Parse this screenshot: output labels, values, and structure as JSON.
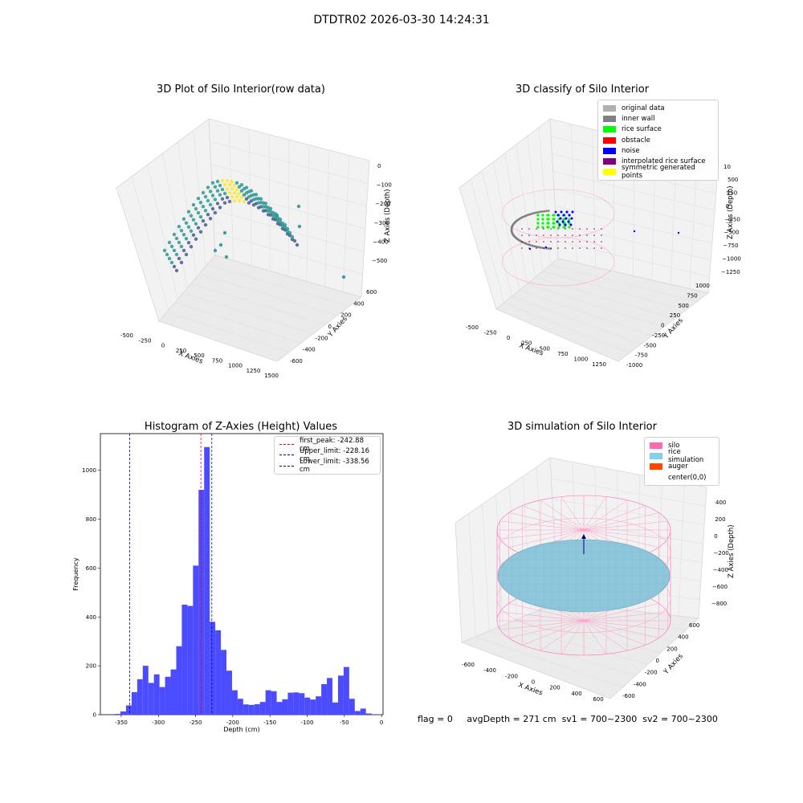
{
  "figure": {
    "title": "DTDTR02 2026-03-30 14:24:31",
    "status": {
      "flag": "flag = 0",
      "avg_depth": "avgDepth = 271 cm",
      "sv1": "sv1 = 700~2300",
      "sv2": "sv2 = 700~2300"
    }
  },
  "chart_data": [
    {
      "type": "scatter",
      "panel": "raw-3d",
      "title": "3D Plot of Silo Interior(row data)",
      "xlabel": "X Axies",
      "ylabel": "Y Axies",
      "zlabel": "Z Axies (Depth)",
      "x_ticks": [
        "-500",
        "-250",
        "0",
        "250",
        "500",
        "750",
        "1000",
        "1250",
        "1500"
      ],
      "y_ticks": [
        "-600",
        "-400",
        "-200",
        "0",
        "200",
        "400",
        "600"
      ],
      "z_ticks": [
        "0",
        "−100",
        "−200",
        "−300",
        "−400",
        "−500"
      ],
      "colormap": "viridis",
      "point_color_low": "#3b528b",
      "point_color_mid": "#21918c",
      "point_color_high": "#fde725"
    },
    {
      "type": "scatter",
      "panel": "classify-3d",
      "title": "3D classify of Silo Interior",
      "xlabel": "X Axies",
      "ylabel": "Y Axies",
      "zlabel": "Z Axies (Depth)",
      "x_ticks": [
        "-500",
        "-250",
        "0",
        "250",
        "500",
        "750",
        "1000",
        "1250"
      ],
      "y_ticks": [
        "-1000",
        "-750",
        "-500",
        "-250",
        "0",
        "250",
        "500",
        "750",
        "1000"
      ],
      "z_ticks": [
        "500",
        "250",
        "0",
        "−250",
        "−500",
        "−750",
        "−1000",
        "−1250"
      ],
      "z_tick_partial": "10",
      "legend_position": "top-right",
      "legend": [
        {
          "label": "original data",
          "color": "#b0b0b0"
        },
        {
          "label": "inner wall",
          "color": "#808080"
        },
        {
          "label": "rice surface",
          "color": "#00ff00"
        },
        {
          "label": "obstacle",
          "color": "#ff0000"
        },
        {
          "label": "noise",
          "color": "#0000ff"
        },
        {
          "label": "interpolated rice surface",
          "color": "#800080"
        },
        {
          "label": "symmetric generated points",
          "color": "#ffff00"
        }
      ]
    },
    {
      "type": "bar",
      "panel": "histogram",
      "title": "Histogram of Z-Axies (Height) Values",
      "xlabel": "Depth (cm)",
      "ylabel": "Frequency",
      "xlim": [
        -378,
        2
      ],
      "ylim": [
        0,
        1150
      ],
      "bar_color": "#4b4bff",
      "bin_width": 7.5,
      "bins_start": [
        -366,
        -358.5,
        -351,
        -343.5,
        -336,
        -328.5,
        -321,
        -313.5,
        -306,
        -298.5,
        -291,
        -283.5,
        -276,
        -268.5,
        -261,
        -253.5,
        -246,
        -238.5,
        -231,
        -223.5,
        -216,
        -208.5,
        -201,
        -193.5,
        -186,
        -178.5,
        -171,
        -163.5,
        -156,
        -148.5,
        -141,
        -133.5,
        -126,
        -118.5,
        -111,
        -103.5,
        -96,
        -88.5,
        -81,
        -73.5,
        -66,
        -58.5,
        -51,
        -43.5,
        -36,
        -28.5,
        -21,
        -13.5,
        -6
      ],
      "counts": [
        2,
        3,
        13,
        38,
        92,
        145,
        200,
        130,
        165,
        113,
        155,
        185,
        280,
        450,
        445,
        610,
        920,
        1095,
        380,
        345,
        265,
        180,
        100,
        65,
        42,
        40,
        43,
        52,
        100,
        96,
        52,
        63,
        90,
        91,
        88,
        70,
        62,
        75,
        125,
        150,
        50,
        160,
        195,
        65,
        15,
        25,
        5,
        2,
        1
      ],
      "x_ticks": [
        -350,
        -300,
        -250,
        -200,
        -150,
        -100,
        -50,
        0
      ],
      "y_ticks": [
        0,
        200,
        400,
        600,
        800,
        1000
      ],
      "vlines": [
        {
          "label": "first_peak: -242.88 cm",
          "x": -242.88,
          "color": "#ff0000"
        },
        {
          "label": "Upper_limit: -228.16 cm",
          "x": -228.16,
          "color": "#0000aa"
        },
        {
          "label": "Lower_limit: -338.56 cm",
          "x": -338.56,
          "color": "#0000aa"
        }
      ],
      "legend_position": "top-right"
    },
    {
      "type": "scatter",
      "panel": "simulation-3d",
      "title": "3D simulation of Silo Interior",
      "xlabel": "X Axies",
      "ylabel": "Y Axies",
      "zlabel": "Z Axies (Depth)",
      "x_ticks": [
        "-600",
        "-400",
        "-200",
        "0",
        "200",
        "400",
        "600"
      ],
      "y_ticks": [
        "-600",
        "-400",
        "-200",
        "0",
        "200",
        "400",
        "600"
      ],
      "z_ticks": [
        "400",
        "200",
        "0",
        "−200",
        "−400",
        "−600",
        "−800"
      ],
      "legend_position": "top-right",
      "legend": [
        {
          "label": "silo",
          "color": "#ff69b4"
        },
        {
          "label": "rice simulation",
          "color": "#87ceeb"
        },
        {
          "label": "auger",
          "color": "#ff4500"
        },
        {
          "label": "center(0,0)",
          "color": "#ffffff"
        }
      ]
    }
  ]
}
